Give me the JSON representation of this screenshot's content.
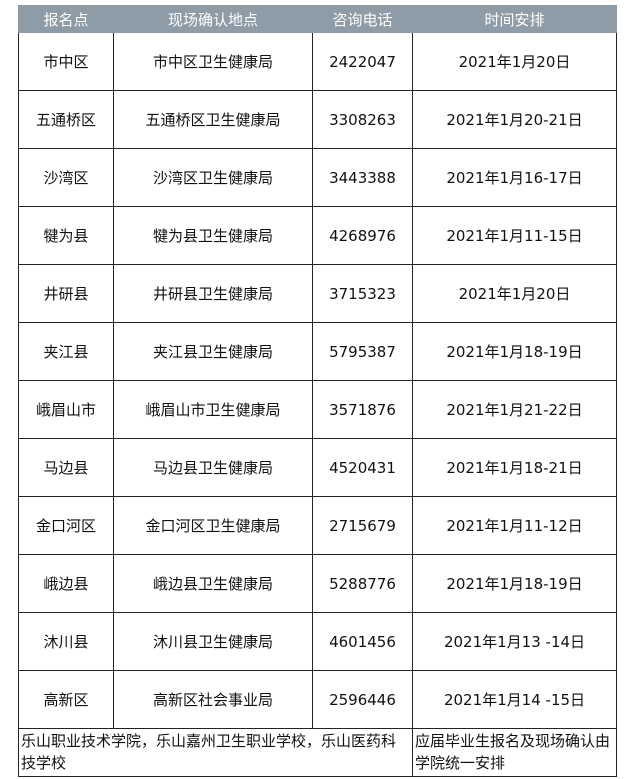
{
  "table": {
    "header": [
      "报名点",
      "现场确认地点",
      "咨询电话",
      "时间安排"
    ],
    "rows": [
      [
        "市中区",
        "市中区卫生健康局",
        "2422047",
        "2021年1月20日"
      ],
      [
        "五通桥区",
        "五通桥区卫生健康局",
        "3308263",
        "2021年1月20-21日"
      ],
      [
        "沙湾区",
        "沙湾区卫生健康局",
        "3443388",
        "2021年1月16-17日"
      ],
      [
        "犍为县",
        "犍为县卫生健康局",
        "4268976",
        "2021年1月11-15日"
      ],
      [
        "井研县",
        "井研县卫生健康局",
        "3715323",
        "2021年1月20日"
      ],
      [
        "夹江县",
        "夹江县卫生健康局",
        "5795387",
        "2021年1月18-19日"
      ],
      [
        "峨眉山市",
        "峨眉山市卫生健康局",
        "3571876",
        "2021年1月21-22日"
      ],
      [
        "马边县",
        "马边县卫生健康局",
        "4520431",
        "2021年1月18-21日"
      ],
      [
        "金口河区",
        "金口河区卫生健康局",
        "2715679",
        "2021年1月11-12日"
      ],
      [
        "峨边县",
        "峨边县卫生健康局",
        "5288776",
        "2021年1月18-19日"
      ],
      [
        "沐川县",
        "沐川县卫生健康局",
        "4601456",
        "2021年1月13 -14日"
      ],
      [
        "高新区",
        "高新区社会事业局",
        "2596446",
        "2021年1月14 -15日"
      ]
    ],
    "footer": [
      "乐山职业技术学院，乐山嘉州卫生职业学校，乐山医药科技学校",
      "应届毕业生报名及现场确认由学院统一安排"
    ]
  }
}
